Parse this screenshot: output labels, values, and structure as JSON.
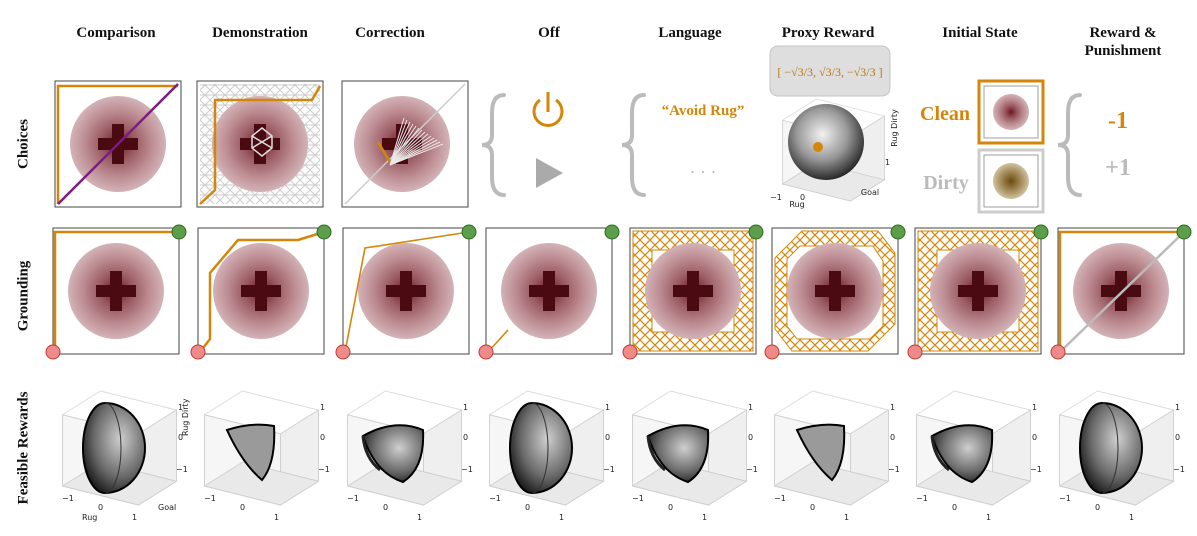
{
  "columns": [
    {
      "title": "Comparison"
    },
    {
      "title": "Demonstration"
    },
    {
      "title": "Correction"
    },
    {
      "title": "Off"
    },
    {
      "title": "Language"
    },
    {
      "title": "Proxy Reward"
    },
    {
      "title": "Initial State"
    },
    {
      "title": "Reward &\nPunishment"
    }
  ],
  "rows": {
    "choices": "Choices",
    "grounding": "Grounding",
    "feasible": "Feasible Rewards"
  },
  "choices": {
    "language_quote": "“Avoid Rug”",
    "language_more": "· · ·",
    "proxy_reward_formula": "[ −√3/3, √3/3, −√3/3 ]",
    "initial_state_clean": "Clean",
    "initial_state_dirty": "Dirty",
    "reward_minus": "-1",
    "reward_plus": "+1"
  },
  "axes3d": {
    "x_label": "Rug",
    "y_label": "Goal",
    "z_label": "Rug Dirty",
    "tick_neg": "−1",
    "tick_zero": "0",
    "tick_pos": "1"
  },
  "colors": {
    "orange": "#d4860a",
    "purple": "#7a1f7a",
    "gray": "#bbbbbb",
    "rug_dark": "#5a0d16",
    "rug_light": "#c9a3a8",
    "goal_green": "#5c9e4a",
    "start_red": "#ef8a8a"
  }
}
